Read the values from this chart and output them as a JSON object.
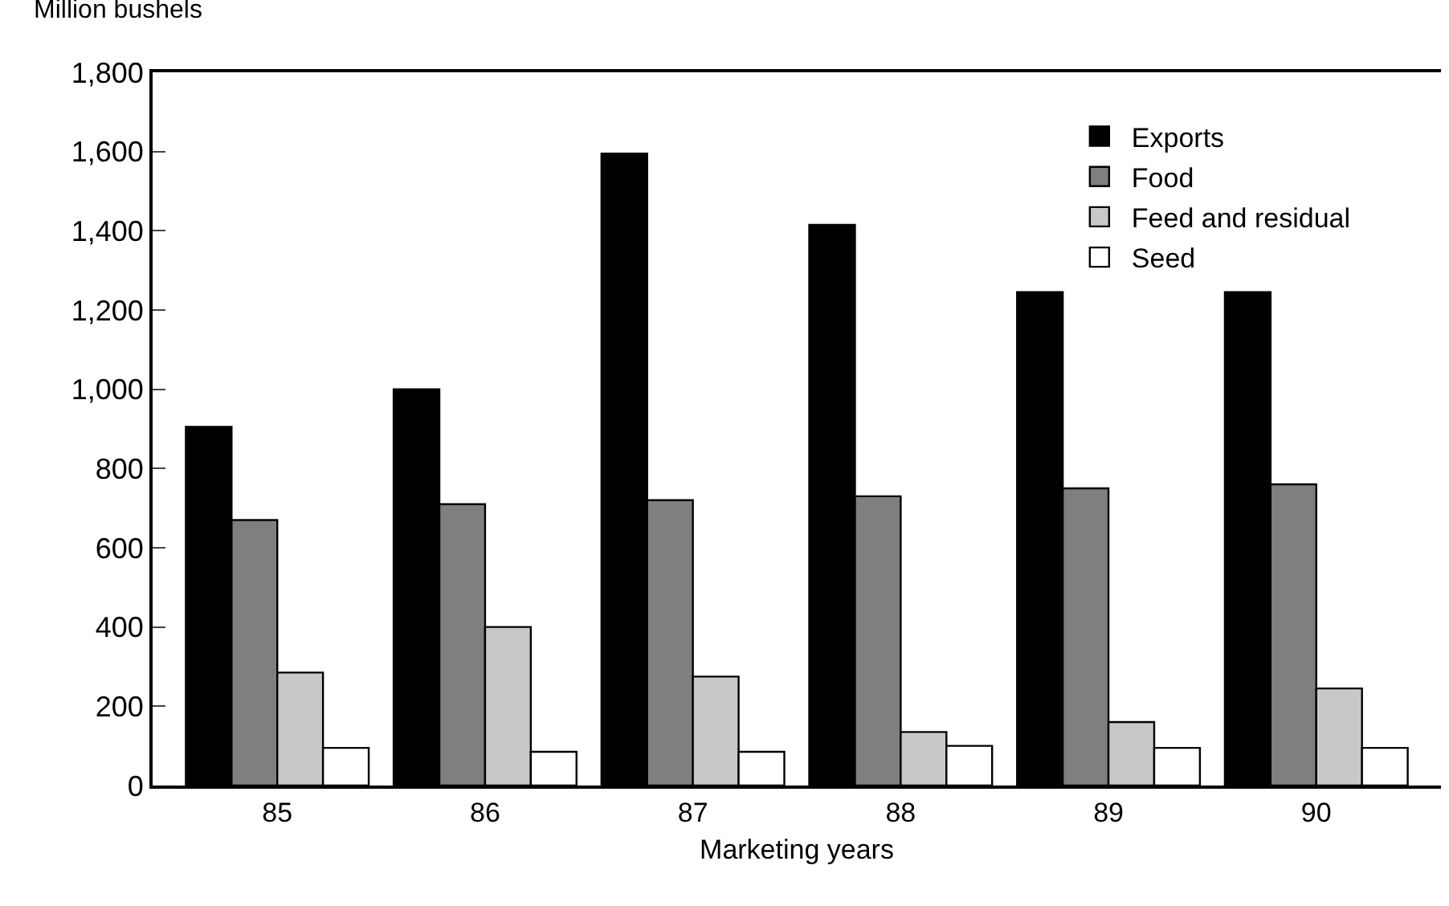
{
  "chart_data": {
    "type": "bar",
    "ylabel": "Million bushels",
    "xlabel": "Marketing years",
    "categories": [
      "85",
      "86",
      "87",
      "88",
      "89",
      "90"
    ],
    "series": [
      {
        "name": "Exports",
        "color": "#000000",
        "values": [
          905,
          1000,
          1595,
          1415,
          1245,
          1245
        ]
      },
      {
        "name": "Food",
        "color": "#7f7f7f",
        "values": [
          670,
          710,
          720,
          730,
          750,
          760
        ]
      },
      {
        "name": "Feed and residual",
        "color": "#c8c8c8",
        "values": [
          285,
          400,
          275,
          135,
          160,
          245
        ]
      },
      {
        "name": "Seed",
        "color": "#ffffff",
        "values": [
          95,
          85,
          85,
          100,
          95,
          95
        ]
      }
    ],
    "ylim": [
      0,
      1800
    ],
    "yticks": [
      0,
      200,
      400,
      600,
      800,
      {
        "value": 1000,
        "label": "1,000"
      },
      {
        "value": 1200,
        "label": "1,200"
      },
      {
        "value": 1400,
        "label": "1,400"
      },
      {
        "value": 1600,
        "label": "1,600"
      },
      {
        "value": 1800,
        "label": "1,800"
      }
    ],
    "legend": "top right"
  }
}
